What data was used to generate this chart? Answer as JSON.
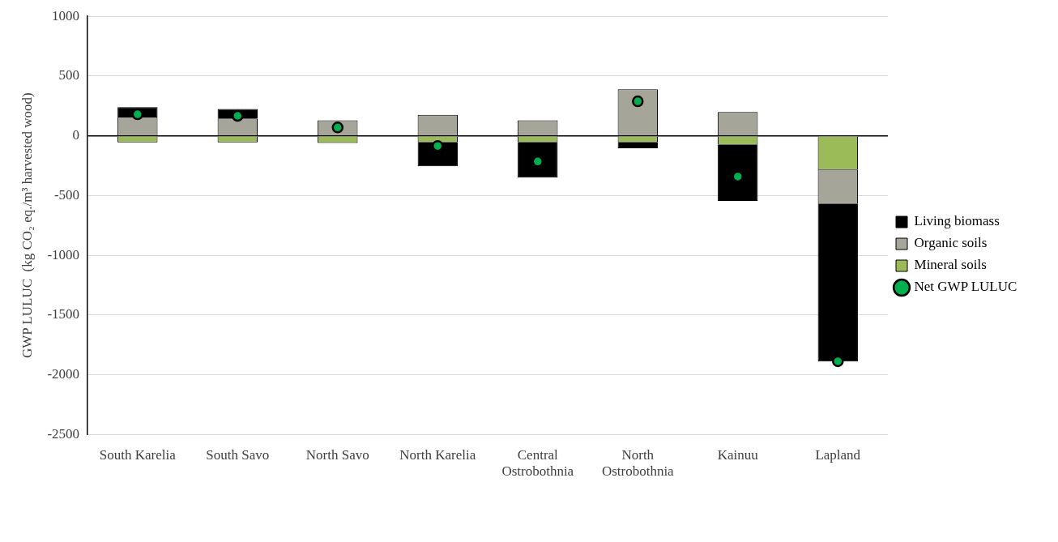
{
  "chart_data": {
    "type": "bar",
    "stacked": true,
    "ylabel": "GWP LULUC  (kg CO₂ eq./m³ harvested wood)",
    "categories": [
      "South Karelia",
      "South Savo",
      "North Savo",
      "North Karelia",
      "Central Ostrobothnia",
      "North Ostrobothnia",
      "Kainuu",
      "Lapland"
    ],
    "series": [
      {
        "name": "Mineral soils",
        "color": "#9bbb59",
        "values": [
          -55,
          -55,
          -60,
          -55,
          -55,
          -55,
          -75,
          -285
        ]
      },
      {
        "name": "Organic soils",
        "color": "#a5a59a",
        "values": [
          160,
          145,
          130,
          175,
          130,
          390,
          200,
          -285
        ]
      },
      {
        "name": "Living biomass",
        "color": "#000000",
        "values": [
          80,
          80,
          0,
          -200,
          -295,
          -50,
          -470,
          -1320
        ]
      },
      {
        "name": "Net GWP LULUC",
        "type": "scatter",
        "color": "#00b050",
        "values": [
          180,
          167,
          70,
          -85,
          -215,
          289,
          -341,
          -1888
        ]
      }
    ],
    "ylim": [
      -2500,
      1000
    ],
    "yticks": [
      -2500,
      -2000,
      -1500,
      -1000,
      -500,
      0,
      500,
      1000
    ],
    "grid": "y",
    "legend": "right",
    "marker": "circle"
  }
}
